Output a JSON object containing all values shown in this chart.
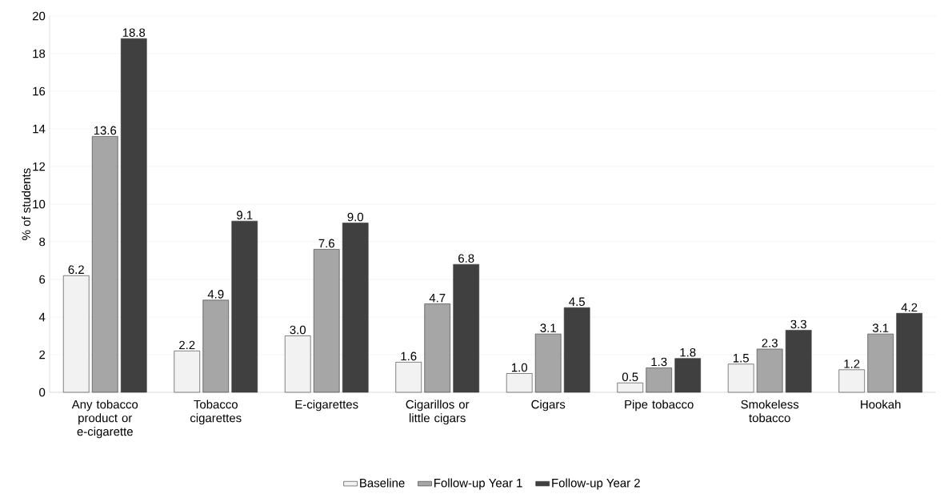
{
  "chart_data": {
    "type": "bar",
    "ylabel": "% of students",
    "categories": [
      "Any tobacco product or e-cigarette",
      "Tobacco cigarettes",
      "E-cigarettes",
      "Cigarillos or little cigars",
      "Cigars",
      "Pipe tobacco",
      "Smokeless tobacco",
      "Hookah"
    ],
    "series": [
      {
        "name": "Baseline",
        "color": "#f2f2f2",
        "values": [
          6.2,
          2.2,
          3.0,
          1.6,
          1.0,
          0.5,
          1.5,
          1.2
        ],
        "value_labels": [
          "6.2",
          "2.2",
          "3.0",
          "1.6",
          "1.0",
          "0.5",
          "1.5",
          "1.2"
        ]
      },
      {
        "name": "Follow-up Year 1",
        "color": "#a6a6a6",
        "values": [
          13.6,
          4.9,
          7.6,
          4.7,
          3.1,
          1.3,
          2.3,
          3.1
        ],
        "value_labels": [
          "13.6",
          "4.9",
          "7.6",
          "4.7",
          "3.1",
          "1.3",
          "2.3",
          "3.1"
        ]
      },
      {
        "name": "Follow-up Year 2",
        "color": "#404040",
        "values": [
          18.8,
          9.1,
          9.0,
          6.8,
          4.5,
          1.8,
          3.3,
          4.2
        ],
        "value_labels": [
          "18.8",
          "9.1",
          "9.0",
          "6.8",
          "4.5",
          "1.8",
          "3.3",
          "4.2"
        ]
      }
    ],
    "ylim": [
      0,
      20
    ],
    "yticks": [
      0,
      2,
      4,
      6,
      8,
      10,
      12,
      14,
      16,
      18,
      20
    ],
    "grid": "y",
    "legend": "bottom"
  }
}
